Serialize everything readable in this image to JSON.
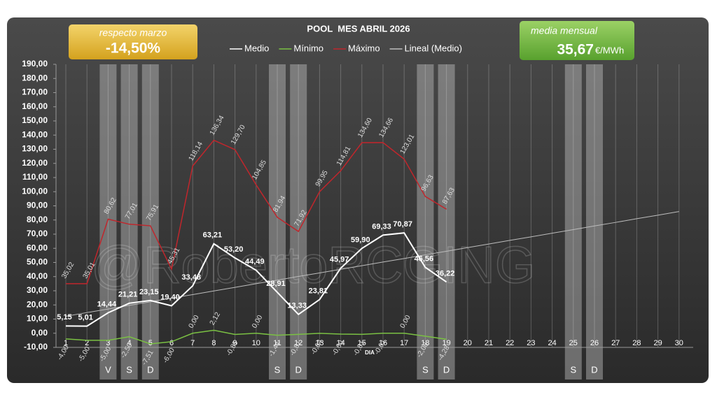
{
  "chart_data": {
    "type": "line",
    "title": "POOL  MES ABRIL 2026",
    "x_label": "DIA",
    "categories": [
      "1",
      "2",
      "3",
      "4",
      "5",
      "6",
      "7",
      "8",
      "9",
      "10",
      "11",
      "12",
      "13",
      "14",
      "15",
      "16",
      "17",
      "18",
      "19",
      "20",
      "21",
      "22",
      "23",
      "24",
      "25",
      "26",
      "27",
      "28",
      "29",
      "30"
    ],
    "series": [
      {
        "name": "Medio",
        "color": "#ffffff",
        "width": 2,
        "values": [
          5.15,
          5.01,
          14.44,
          21.21,
          23.15,
          19.4,
          33.48,
          63.21,
          53.2,
          44.49,
          28.91,
          13.33,
          23.81,
          45.97,
          59.9,
          69.33,
          70.87,
          46.56,
          36.22,
          null,
          null,
          null,
          null,
          null,
          null,
          null,
          null,
          null,
          null,
          null
        ],
        "value_labels": [
          "5,15",
          "5,01",
          "14,44",
          "21,21",
          "23,15",
          "19,40",
          "33,48",
          "63,21",
          "53,20",
          "44,49",
          "28,91",
          "13,33",
          "23,81",
          "45,97",
          "59,90",
          "69,33",
          "70,87",
          "46,56",
          "36,22",
          null,
          null,
          null,
          null,
          null,
          null,
          null,
          null,
          null,
          null,
          null
        ]
      },
      {
        "name": "Mínimo",
        "color": "#7ac043",
        "width": 1.5,
        "values": [
          -4.0,
          -5.0,
          -5.0,
          -2.5,
          -7.51,
          -6.0,
          0.0,
          2.12,
          -0.85,
          0.0,
          -1.44,
          -0.81,
          -0.04,
          -0.6,
          -0.81,
          -0.01,
          0.0,
          -2.08,
          -4.28,
          null,
          null,
          null,
          null,
          null,
          null,
          null,
          null,
          null,
          null,
          null
        ],
        "value_labels": [
          "-4,00",
          "-5,00",
          "-5,00",
          "-2,50",
          "-7,51",
          "-6,00",
          "0,00",
          "2,12",
          "-0,85",
          "0,00",
          "-1,44",
          "-0,81",
          "-0,04",
          "-0,60",
          "-0,81",
          "-0,01",
          "0,00",
          "-2,08",
          "-4,28",
          null,
          null,
          null,
          null,
          null,
          null,
          null,
          null,
          null,
          null,
          null
        ]
      },
      {
        "name": "Máximo",
        "color": "#c0262c",
        "width": 1.5,
        "values": [
          35.02,
          35.01,
          80.62,
          77.01,
          75.91,
          45.31,
          118.14,
          136.34,
          129.7,
          104.85,
          81.94,
          71.92,
          99.95,
          114.81,
          134.6,
          134.66,
          123.01,
          96.63,
          87.63,
          null,
          null,
          null,
          null,
          null,
          null,
          null,
          null,
          null,
          null,
          null
        ],
        "value_labels": [
          "35,02",
          "35,01",
          "80,62",
          "77,01",
          "75,91",
          "45,31",
          "118,14",
          "136,34",
          "129,70",
          "104,85",
          "81,94",
          "71,92",
          "99,95",
          "114,81",
          "134,60",
          "134,66",
          "123,01",
          "96,63",
          "87,63",
          null,
          null,
          null,
          null,
          null,
          null,
          null,
          null,
          null,
          null,
          null
        ]
      },
      {
        "name": "Lineal (Medio)",
        "color": "#bdbdbd",
        "width": 1,
        "values": [
          12.0,
          14.6,
          17.1,
          19.7,
          22.2,
          24.8,
          27.3,
          29.9,
          32.4,
          35.0,
          37.5,
          40.1,
          42.6,
          45.2,
          47.7,
          50.3,
          52.8,
          55.4,
          57.9,
          60.5,
          63.0,
          65.6,
          68.1,
          70.7,
          73.2,
          75.8,
          78.3,
          80.9,
          83.4,
          86.0
        ]
      }
    ],
    "ylim": [
      -10,
      190
    ],
    "yticks": [
      {
        "value": -10,
        "label": "-10,00"
      },
      {
        "value": 0,
        "label": "0,00"
      },
      {
        "value": 10,
        "label": "10,00"
      },
      {
        "value": 20,
        "label": "20,00"
      },
      {
        "value": 30,
        "label": "30,00"
      },
      {
        "value": 40,
        "label": "40,00"
      },
      {
        "value": 50,
        "label": "50,00"
      },
      {
        "value": 60,
        "label": "60,00"
      },
      {
        "value": 70,
        "label": "70,00"
      },
      {
        "value": 80,
        "label": "80,00"
      },
      {
        "value": 90,
        "label": "90,00"
      },
      {
        "value": 100,
        "label": "100,00"
      },
      {
        "value": 110,
        "label": "110,00"
      },
      {
        "value": 120,
        "label": "120,00"
      },
      {
        "value": 130,
        "label": "130,00"
      },
      {
        "value": 140,
        "label": "140,00"
      },
      {
        "value": 150,
        "label": "150,00"
      },
      {
        "value": 160,
        "label": "160,00"
      },
      {
        "value": 170,
        "label": "170,00"
      },
      {
        "value": 180,
        "label": "180,00"
      },
      {
        "value": 190,
        "label": "190,00"
      }
    ],
    "shaded_days": [
      {
        "category": "3",
        "label": "V"
      },
      {
        "category": "4",
        "label": "S"
      },
      {
        "category": "5",
        "label": "D"
      },
      {
        "category": "11",
        "label": "S"
      },
      {
        "category": "12",
        "label": "D"
      },
      {
        "category": "18",
        "label": "S"
      },
      {
        "category": "19",
        "label": "D"
      },
      {
        "category": "25",
        "label": "S"
      },
      {
        "category": "26",
        "label": "D"
      }
    ],
    "watermark": "@RobertoRCGING",
    "legend_position": "top"
  },
  "boxes": {
    "left": {
      "caption": "respecto marzo",
      "value": "-14,50%"
    },
    "right": {
      "caption": "media mensual",
      "value": "35,67",
      "unit": "€/MWh"
    }
  }
}
